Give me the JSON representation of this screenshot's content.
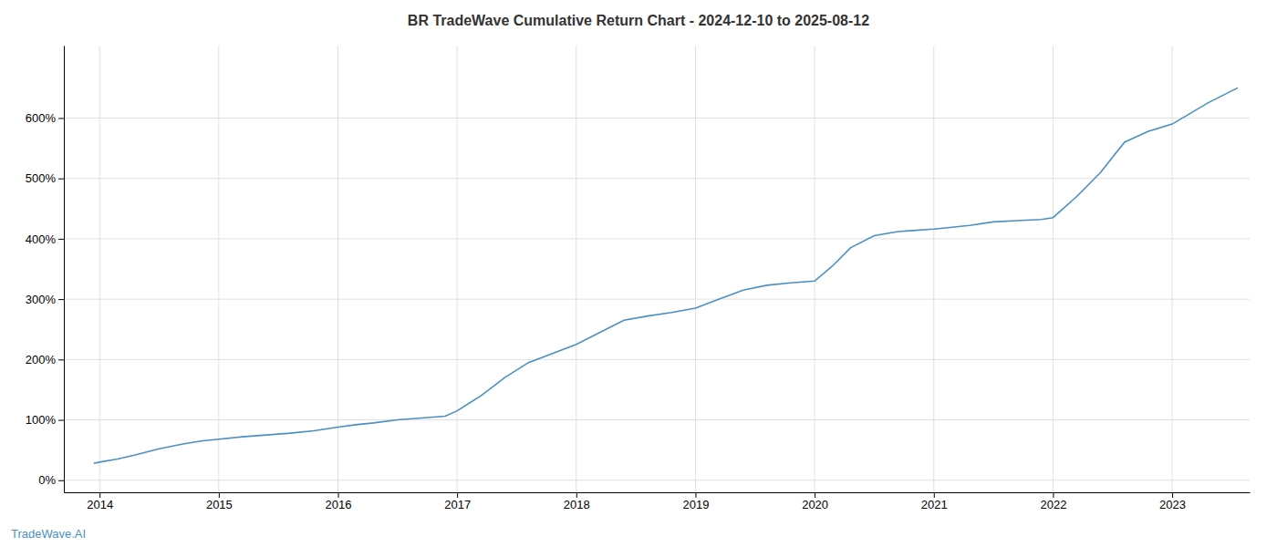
{
  "chart_data": {
    "type": "line",
    "title": "BR TradeWave Cumulative Return Chart - 2024-12-10 to 2025-08-12",
    "annotations": [
      "TradeWave.AI"
    ],
    "color": "#4a90c4",
    "x": [
      2013.95,
      2014.0,
      2014.15,
      2014.3,
      2014.5,
      2014.7,
      2014.85,
      2015.0,
      2015.2,
      2015.4,
      2015.6,
      2015.8,
      2016.0,
      2016.15,
      2016.3,
      2016.5,
      2016.7,
      2016.9,
      2017.0,
      2017.2,
      2017.4,
      2017.6,
      2017.8,
      2018.0,
      2018.2,
      2018.4,
      2018.6,
      2018.8,
      2019.0,
      2019.2,
      2019.4,
      2019.6,
      2019.8,
      2020.0,
      2020.15,
      2020.3,
      2020.5,
      2020.7,
      2020.85,
      2021.0,
      2021.1,
      2021.3,
      2021.5,
      2021.7,
      2021.9,
      2022.0,
      2022.2,
      2022.4,
      2022.6,
      2022.8,
      2023.0,
      2023.3,
      2023.55
    ],
    "values": [
      28,
      30,
      35,
      42,
      52,
      60,
      65,
      68,
      72,
      75,
      78,
      82,
      88,
      92,
      95,
      100,
      103,
      106,
      115,
      140,
      170,
      195,
      210,
      225,
      245,
      265,
      272,
      278,
      285,
      300,
      315,
      323,
      327,
      330,
      355,
      385,
      405,
      412,
      414,
      416,
      418,
      422,
      428,
      430,
      432,
      435,
      470,
      510,
      560,
      578,
      590,
      625,
      650
    ],
    "xlim": [
      2013.7,
      2023.65
    ],
    "xticks": [
      2014,
      2015,
      2016,
      2017,
      2018,
      2019,
      2020,
      2021,
      2022,
      2023
    ],
    "ylim": [
      -20,
      720
    ],
    "yticks": [
      {
        "value": 0,
        "label": "0%"
      },
      {
        "value": 100,
        "label": "100%"
      },
      {
        "value": 200,
        "label": "200%"
      },
      {
        "value": 300,
        "label": "300%"
      },
      {
        "value": 400,
        "label": "400%"
      },
      {
        "value": 500,
        "label": "500%"
      },
      {
        "value": 600,
        "label": "600%"
      }
    ],
    "grid": true
  }
}
